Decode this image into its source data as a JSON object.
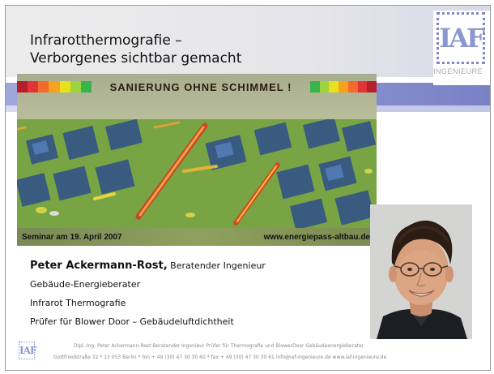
{
  "title": {
    "line1": "Infrarotthermografie –",
    "line2": "Verborgenes sichtbar gemacht"
  },
  "logo": {
    "mark": "IAF",
    "subtitle": "INGENIEURE"
  },
  "banner": {
    "headline": "SANIERUNG OHNE SCHIMMEL !",
    "seminar": "Seminar am 19. April 2007",
    "website": "www.energiepass-altbau.de",
    "colorbar": [
      "#b51f2a",
      "#e3323a",
      "#f36b2c",
      "#f7a21c",
      "#e9e01e",
      "#9ed43b",
      "#38b54a"
    ]
  },
  "presenter": {
    "name": "Peter Ackermann-Rost,",
    "role": "Beratender Ingenieur",
    "lines": [
      "Gebäude-Energieberater",
      "Infrarot Thermografie",
      "Prüfer für Blower Door – Gebäudeluftdichtheit"
    ]
  },
  "footer": {
    "logo_mark": "IAF",
    "line1": "Dipl.-Ing. Peter Ackermann-Rost   Beratender Ingenieur   Prüfer für Thermografie und BlowerDoor   Gebäudeenergieberater",
    "line2": "Gottfriedstraße 32 * 13 053  Berlin * fon + 49 (30) 47 30 30 60 * fax + 49 (30) 47 30 30 61 info@iaf-ingenieure.de  www.iaf-ingenieure.de"
  }
}
